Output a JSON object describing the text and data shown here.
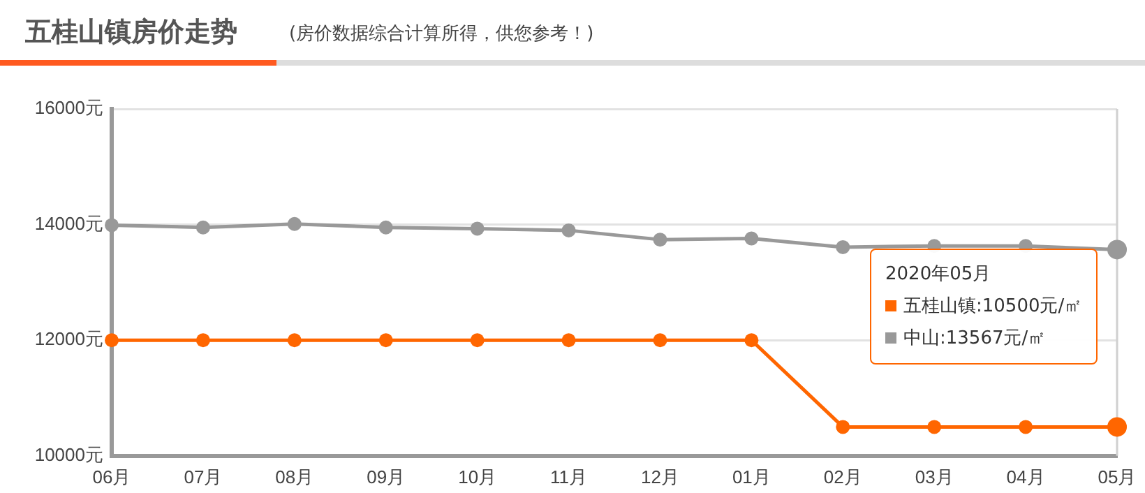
{
  "chart_data": {
    "type": "line",
    "title": "五桂山镇房价走势",
    "subtitle": "(房价数据综合计算所得，供您参考！)",
    "categories": [
      "06月",
      "07月",
      "08月",
      "09月",
      "10月",
      "11月",
      "12月",
      "01月",
      "02月",
      "03月",
      "04月",
      "05月"
    ],
    "series": [
      {
        "name": "五桂山镇",
        "color": "#ff6600",
        "values": [
          12000,
          12000,
          12000,
          12000,
          12000,
          12000,
          12000,
          12000,
          10500,
          10500,
          10500,
          10500
        ],
        "value_labels": [
          null,
          null,
          null,
          null,
          null,
          null,
          null,
          null,
          null,
          null,
          null,
          ":10500元/㎡"
        ]
      },
      {
        "name": "中山",
        "color": "#999999",
        "values": [
          13990,
          13950,
          14010,
          13950,
          13930,
          13900,
          13740,
          13760,
          13610,
          13630,
          13630,
          13567
        ],
        "value_labels": [
          null,
          null,
          null,
          null,
          null,
          null,
          null,
          null,
          null,
          null,
          null,
          ":13567元/㎡"
        ]
      }
    ],
    "ylim": [
      10000,
      16000
    ],
    "yticks": [
      {
        "value": 10000,
        "label": "10000元"
      },
      {
        "value": 12000,
        "label": "12000元"
      },
      {
        "value": 14000,
        "label": "14000元"
      },
      {
        "value": 16000,
        "label": "16000元"
      }
    ],
    "annotations": [
      "2020年05月"
    ],
    "grid": "y",
    "marker": "circle",
    "line_style": "solid",
    "legend": false
  }
}
